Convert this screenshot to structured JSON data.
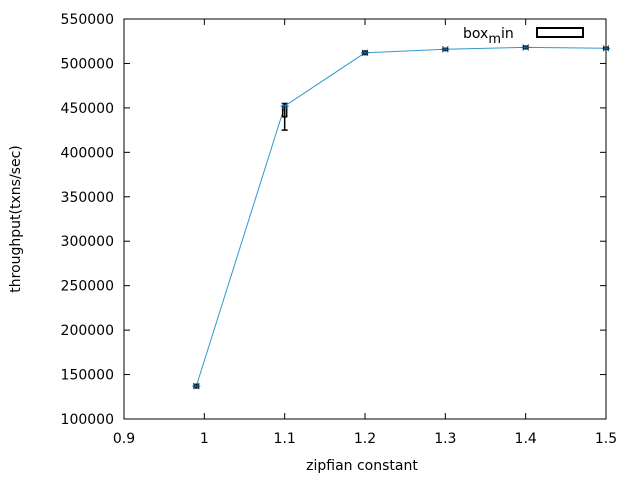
{
  "chart_data": {
    "type": "line",
    "title": "",
    "xlabel": "zipfian constant",
    "ylabel": "throughput(txns/sec)",
    "xlim": [
      0.9,
      1.5
    ],
    "ylim": [
      100000,
      550000
    ],
    "xticks": [
      "0.9",
      "1",
      "1.1",
      "1.2",
      "1.3",
      "1.4",
      "1.5"
    ],
    "xtick_values": [
      0.9,
      1.0,
      1.1,
      1.2,
      1.3,
      1.4,
      1.5
    ],
    "yticks": [
      "100000",
      "150000",
      "200000",
      "250000",
      "300000",
      "350000",
      "400000",
      "450000",
      "500000",
      "550000"
    ],
    "ytick_values": [
      100000,
      150000,
      200000,
      250000,
      300000,
      350000,
      400000,
      450000,
      500000,
      550000
    ],
    "grid": false,
    "legend_position": "top-right",
    "legend": {
      "label_base": "box",
      "label_sub": "m",
      "label_rest": "in"
    },
    "series": [
      {
        "x": [
          0.99,
          1.1,
          1.2,
          1.3,
          1.4,
          1.5
        ],
        "y": [
          137000,
          452000,
          512000,
          516000,
          518000,
          517000
        ],
        "color": "#3399cc"
      }
    ],
    "boxes": [
      {
        "x": 0.99,
        "whisker_low": 135000,
        "box_low": 136000,
        "box_high": 138500,
        "whisker_high": 139000
      },
      {
        "x": 1.1,
        "whisker_low": 425000,
        "box_low": 440000,
        "box_high": 452000,
        "whisker_high": 455000
      },
      {
        "x": 1.2,
        "whisker_low": 510000,
        "box_low": 511000,
        "box_high": 513000,
        "whisker_high": 514000
      },
      {
        "x": 1.3,
        "whisker_low": 514500,
        "box_low": 515500,
        "box_high": 516500,
        "whisker_high": 517000
      },
      {
        "x": 1.4,
        "whisker_low": 516500,
        "box_low": 517000,
        "box_high": 519000,
        "whisker_high": 519500
      },
      {
        "x": 1.5,
        "whisker_low": 516000,
        "box_low": 516500,
        "box_high": 517500,
        "whisker_high": 518000
      }
    ],
    "colors": {
      "line": "#3399cc",
      "box": "#000000",
      "marker": "#1a5f8a"
    }
  }
}
